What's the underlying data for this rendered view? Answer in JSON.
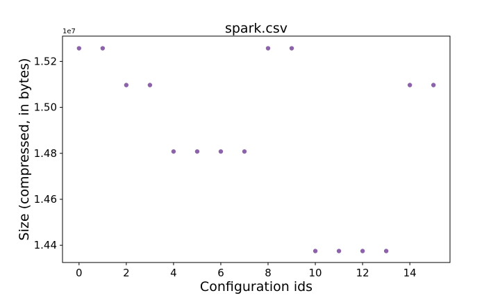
{
  "chart_data": {
    "type": "scatter",
    "title": "spark.csv",
    "xlabel": "Configuration ids",
    "ylabel": "Size (compressed, in bytes)",
    "y_multiplier": "1e7",
    "xlim": [
      -0.7,
      15.7
    ],
    "ylim": [
      1.4325,
      1.531
    ],
    "x_ticks": [
      0,
      2,
      4,
      6,
      8,
      10,
      12,
      14
    ],
    "y_ticks": [
      1.44,
      1.46,
      1.48,
      1.5,
      1.52
    ],
    "y_tick_labels": [
      "1.44",
      "1.46",
      "1.48",
      "1.50",
      "1.52"
    ],
    "grid": false,
    "marker_color": "#8c62aa",
    "x": [
      0,
      1,
      2,
      3,
      4,
      5,
      6,
      7,
      8,
      9,
      10,
      11,
      12,
      13,
      14,
      15
    ],
    "y": [
      1.5257,
      1.5257,
      1.5097,
      1.5097,
      1.4808,
      1.4808,
      1.4808,
      1.4808,
      1.5257,
      1.5257,
      1.4375,
      1.4375,
      1.4375,
      1.4375,
      1.5097,
      1.5097
    ]
  }
}
